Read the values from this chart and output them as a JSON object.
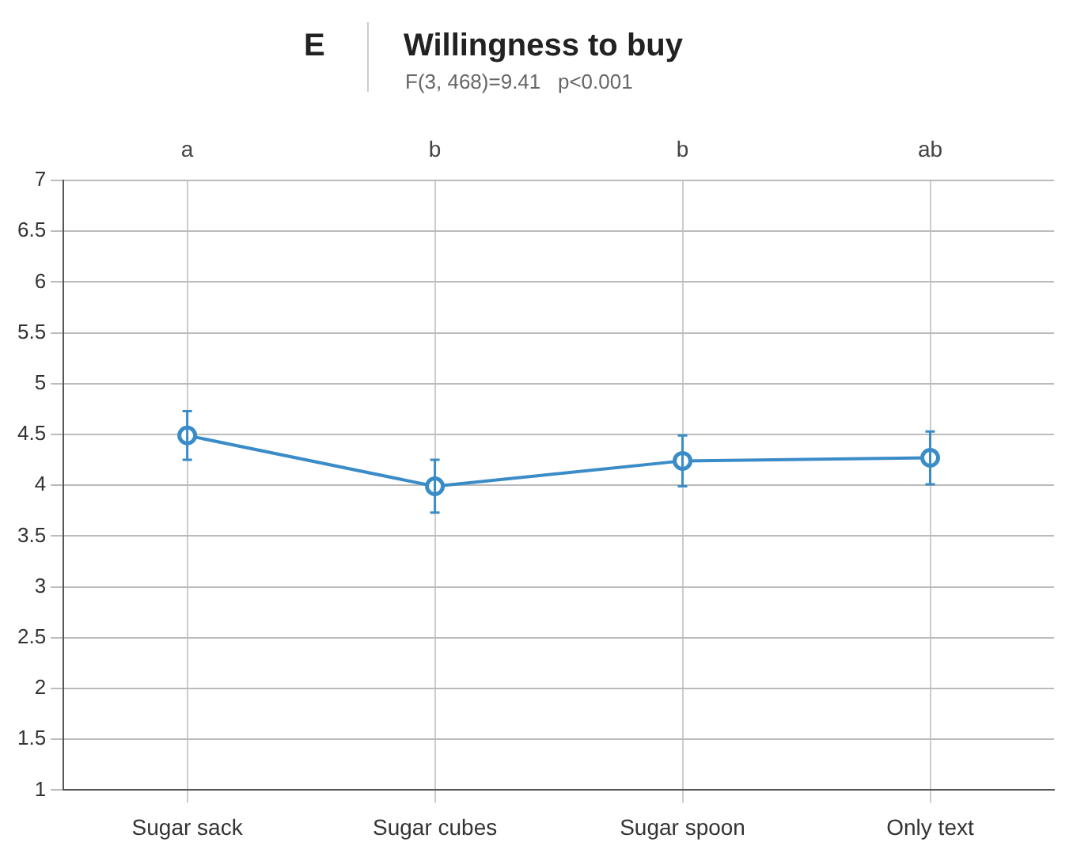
{
  "chart_data": {
    "type": "line",
    "title": "Willingness to buy",
    "subtitle": "F(3, 468)=9.41   p<0.001",
    "categories": [
      "Sugar sack",
      "Sugar cubes",
      "Sugar spoon",
      "Only text"
    ],
    "series": [
      {
        "color": "#3a8cc8",
        "values": [
          4.49,
          3.99,
          4.24,
          4.27
        ],
        "errors": [
          0.24,
          0.26,
          0.25,
          0.26
        ]
      }
    ],
    "ylim": [
      1,
      7
    ],
    "yticks": [
      1,
      1.5,
      2,
      2.5,
      3,
      3.5,
      4,
      4.5,
      5,
      5.5,
      6,
      6.5,
      7
    ],
    "grid": true,
    "legend": false,
    "marker": "circle",
    "line_style": "solid",
    "annotations": [
      "E",
      "a",
      "b",
      "b",
      "ab"
    ]
  }
}
